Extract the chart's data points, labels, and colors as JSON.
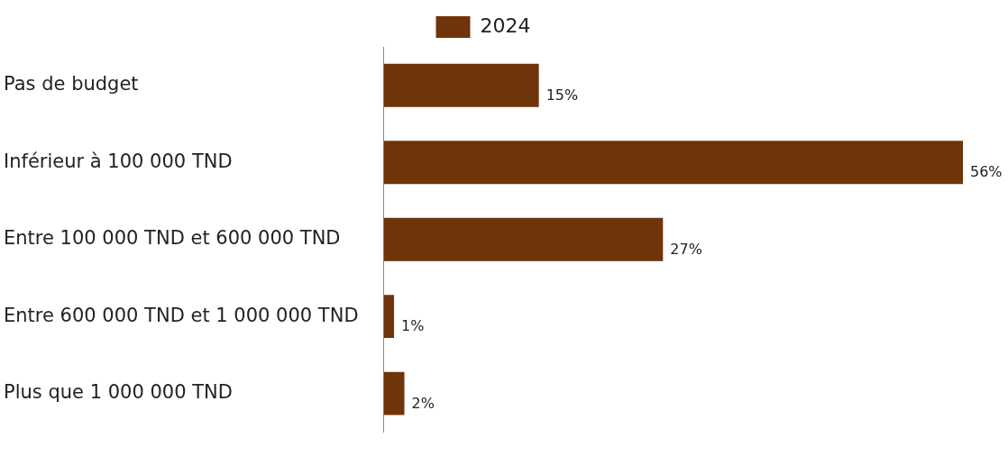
{
  "chart_data": {
    "type": "bar",
    "orientation": "horizontal",
    "categories": [
      "Pas de budget",
      "Inférieur à 100 000 TND",
      "Entre 100 000 TND et 600 000 TND",
      "Entre 600 000 TND et 1 000 000 TND",
      "Plus que 1 000 000 TND"
    ],
    "series": [
      {
        "name": "2024",
        "color": "#6f3409",
        "values": [
          15,
          56,
          27,
          1,
          2
        ],
        "value_labels": [
          "15%",
          "56%",
          "27%",
          "1%",
          "2%"
        ]
      }
    ],
    "xlim": [
      0,
      56
    ],
    "tick_labels": "y",
    "grid": false,
    "legend": "top"
  }
}
